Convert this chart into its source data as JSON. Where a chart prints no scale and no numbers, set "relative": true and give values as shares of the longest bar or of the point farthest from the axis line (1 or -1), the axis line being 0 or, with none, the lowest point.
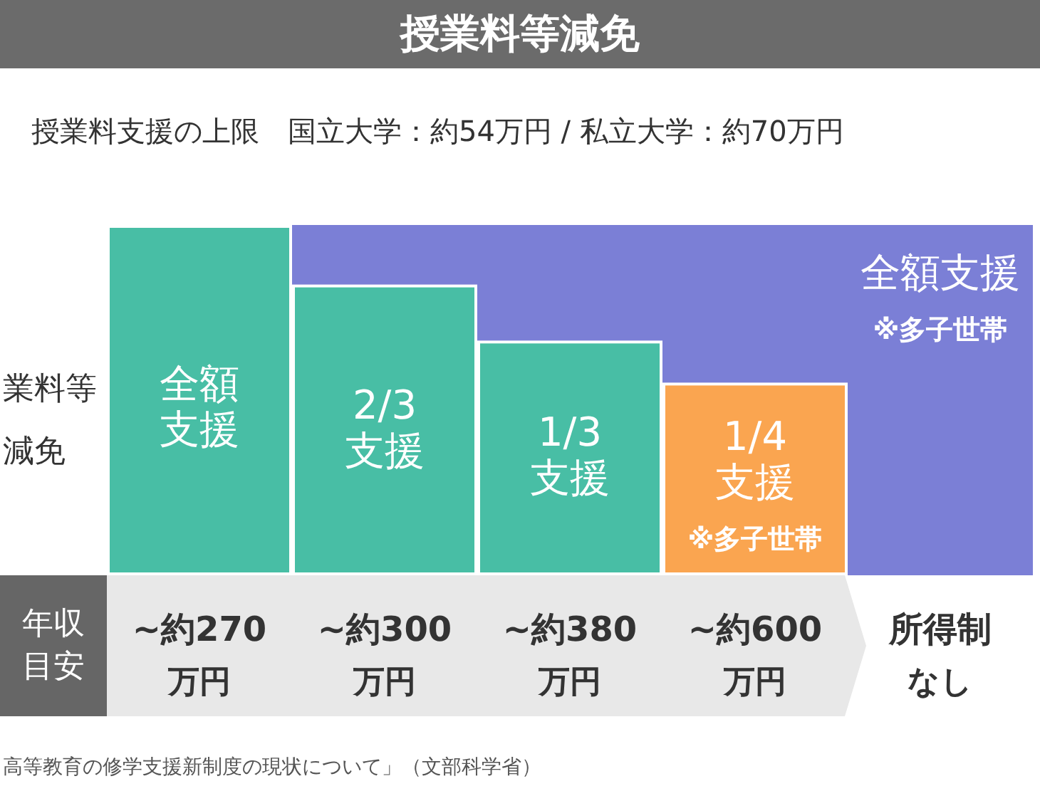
{
  "chart_data": {
    "type": "bar",
    "title": "授業料等減免",
    "subtitle": "授業料支援の上限　国立大学：約54万円 / 私立大学：約70万円",
    "xlabel": "年収目安",
    "ylabel": "業料等減免",
    "categories": [
      "~約270万円",
      "~約300万円",
      "~約380万円",
      "~約600万円",
      "所得制なし"
    ],
    "relative": true,
    "stacked": true,
    "series": [
      {
        "colors": [
          "#48bea5",
          "#48bea5",
          "#48bea5",
          "#faa550",
          null
        ],
        "values": [
          1,
          0.83,
          0.67,
          0.55,
          null
        ]
      },
      {
        "color": "#7b7fd6",
        "values": [
          null,
          0.17,
          0.33,
          0.45,
          1
        ]
      }
    ],
    "annotations": [
      "全額支援",
      "2/3支援",
      "1/3支援",
      "1/4支援",
      "※多子世帯",
      "全額支援",
      "※多子世帯",
      "高等教育の修学支援新制度の現状について」（文部科学省）"
    ]
  }
}
